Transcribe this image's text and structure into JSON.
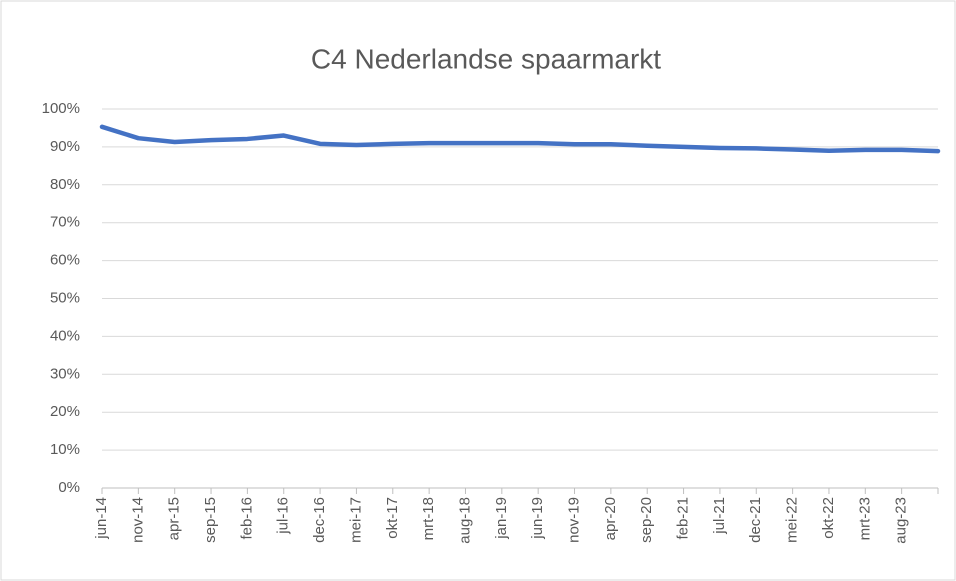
{
  "chart_data": {
    "type": "line",
    "title": "C4 Nederlandse spaarmarkt",
    "categories": [
      "jun-14",
      "nov-14",
      "apr-15",
      "sep-15",
      "feb-16",
      "jul-16",
      "dec-16",
      "mei-17",
      "okt-17",
      "mrt-18",
      "aug-18",
      "jan-19",
      "jun-19",
      "nov-19",
      "apr-20",
      "sep-20",
      "feb-21",
      "jul-21",
      "dec-21",
      "mei-22",
      "okt-22",
      "mrt-23",
      "aug-23",
      null
    ],
    "series": [
      {
        "name": "C4",
        "color": "#4472c4",
        "values": [
          95.3,
          92.3,
          91.3,
          91.8,
          92.1,
          93.0,
          90.8,
          90.5,
          90.8,
          91.0,
          91.0,
          91.0,
          91.0,
          90.7,
          90.7,
          90.3,
          90.0,
          89.7,
          89.6,
          89.3,
          89.0,
          89.2,
          89.2,
          88.9
        ]
      }
    ],
    "ylim": [
      0,
      100
    ],
    "yticks": [
      {
        "value": 0,
        "label": "0%"
      },
      {
        "value": 10,
        "label": "10%"
      },
      {
        "value": 20,
        "label": "20%"
      },
      {
        "value": 30,
        "label": "30%"
      },
      {
        "value": 40,
        "label": "40%"
      },
      {
        "value": 50,
        "label": "50%"
      },
      {
        "value": 60,
        "label": "60%"
      },
      {
        "value": 70,
        "label": "70%"
      },
      {
        "value": 80,
        "label": "80%"
      },
      {
        "value": 90,
        "label": "90%"
      },
      {
        "value": 100,
        "label": "100%"
      }
    ],
    "grid": true
  }
}
